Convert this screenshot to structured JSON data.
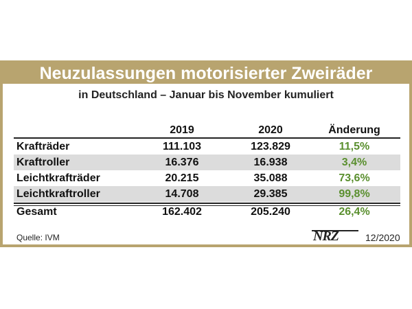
{
  "chart_data": {
    "type": "table",
    "title": "Neuzulassungen motorisierter Zweiräder",
    "subtitle": "in Deutschland – Januar bis November kumuliert",
    "columns": [
      "2019",
      "2020",
      "Änderung"
    ],
    "rows": [
      {
        "label": "Krafträder",
        "v2019": "111.103",
        "v2020": "123.829",
        "change": "11,5%"
      },
      {
        "label": "Kraftroller",
        "v2019": "16.376",
        "v2020": "16.938",
        "change": "3,4%"
      },
      {
        "label": "Leichtkrafträder",
        "v2019": "20.215",
        "v2020": "35.088",
        "change": "73,6%"
      },
      {
        "label": "Leichtkraftroller",
        "v2019": "14.708",
        "v2020": "29.385",
        "change": "99,8%"
      }
    ],
    "total": {
      "label": "Gesamt",
      "v2019": "162.402",
      "v2020": "205.240",
      "change": "26,4%"
    }
  },
  "footer": {
    "source": "Quelle: IVM",
    "logo": "NRZ",
    "date": "12/2020"
  },
  "colors": {
    "accent": "#b8a46f",
    "change_green": "#5a8f2e",
    "row_band": "#dcdcdc"
  }
}
